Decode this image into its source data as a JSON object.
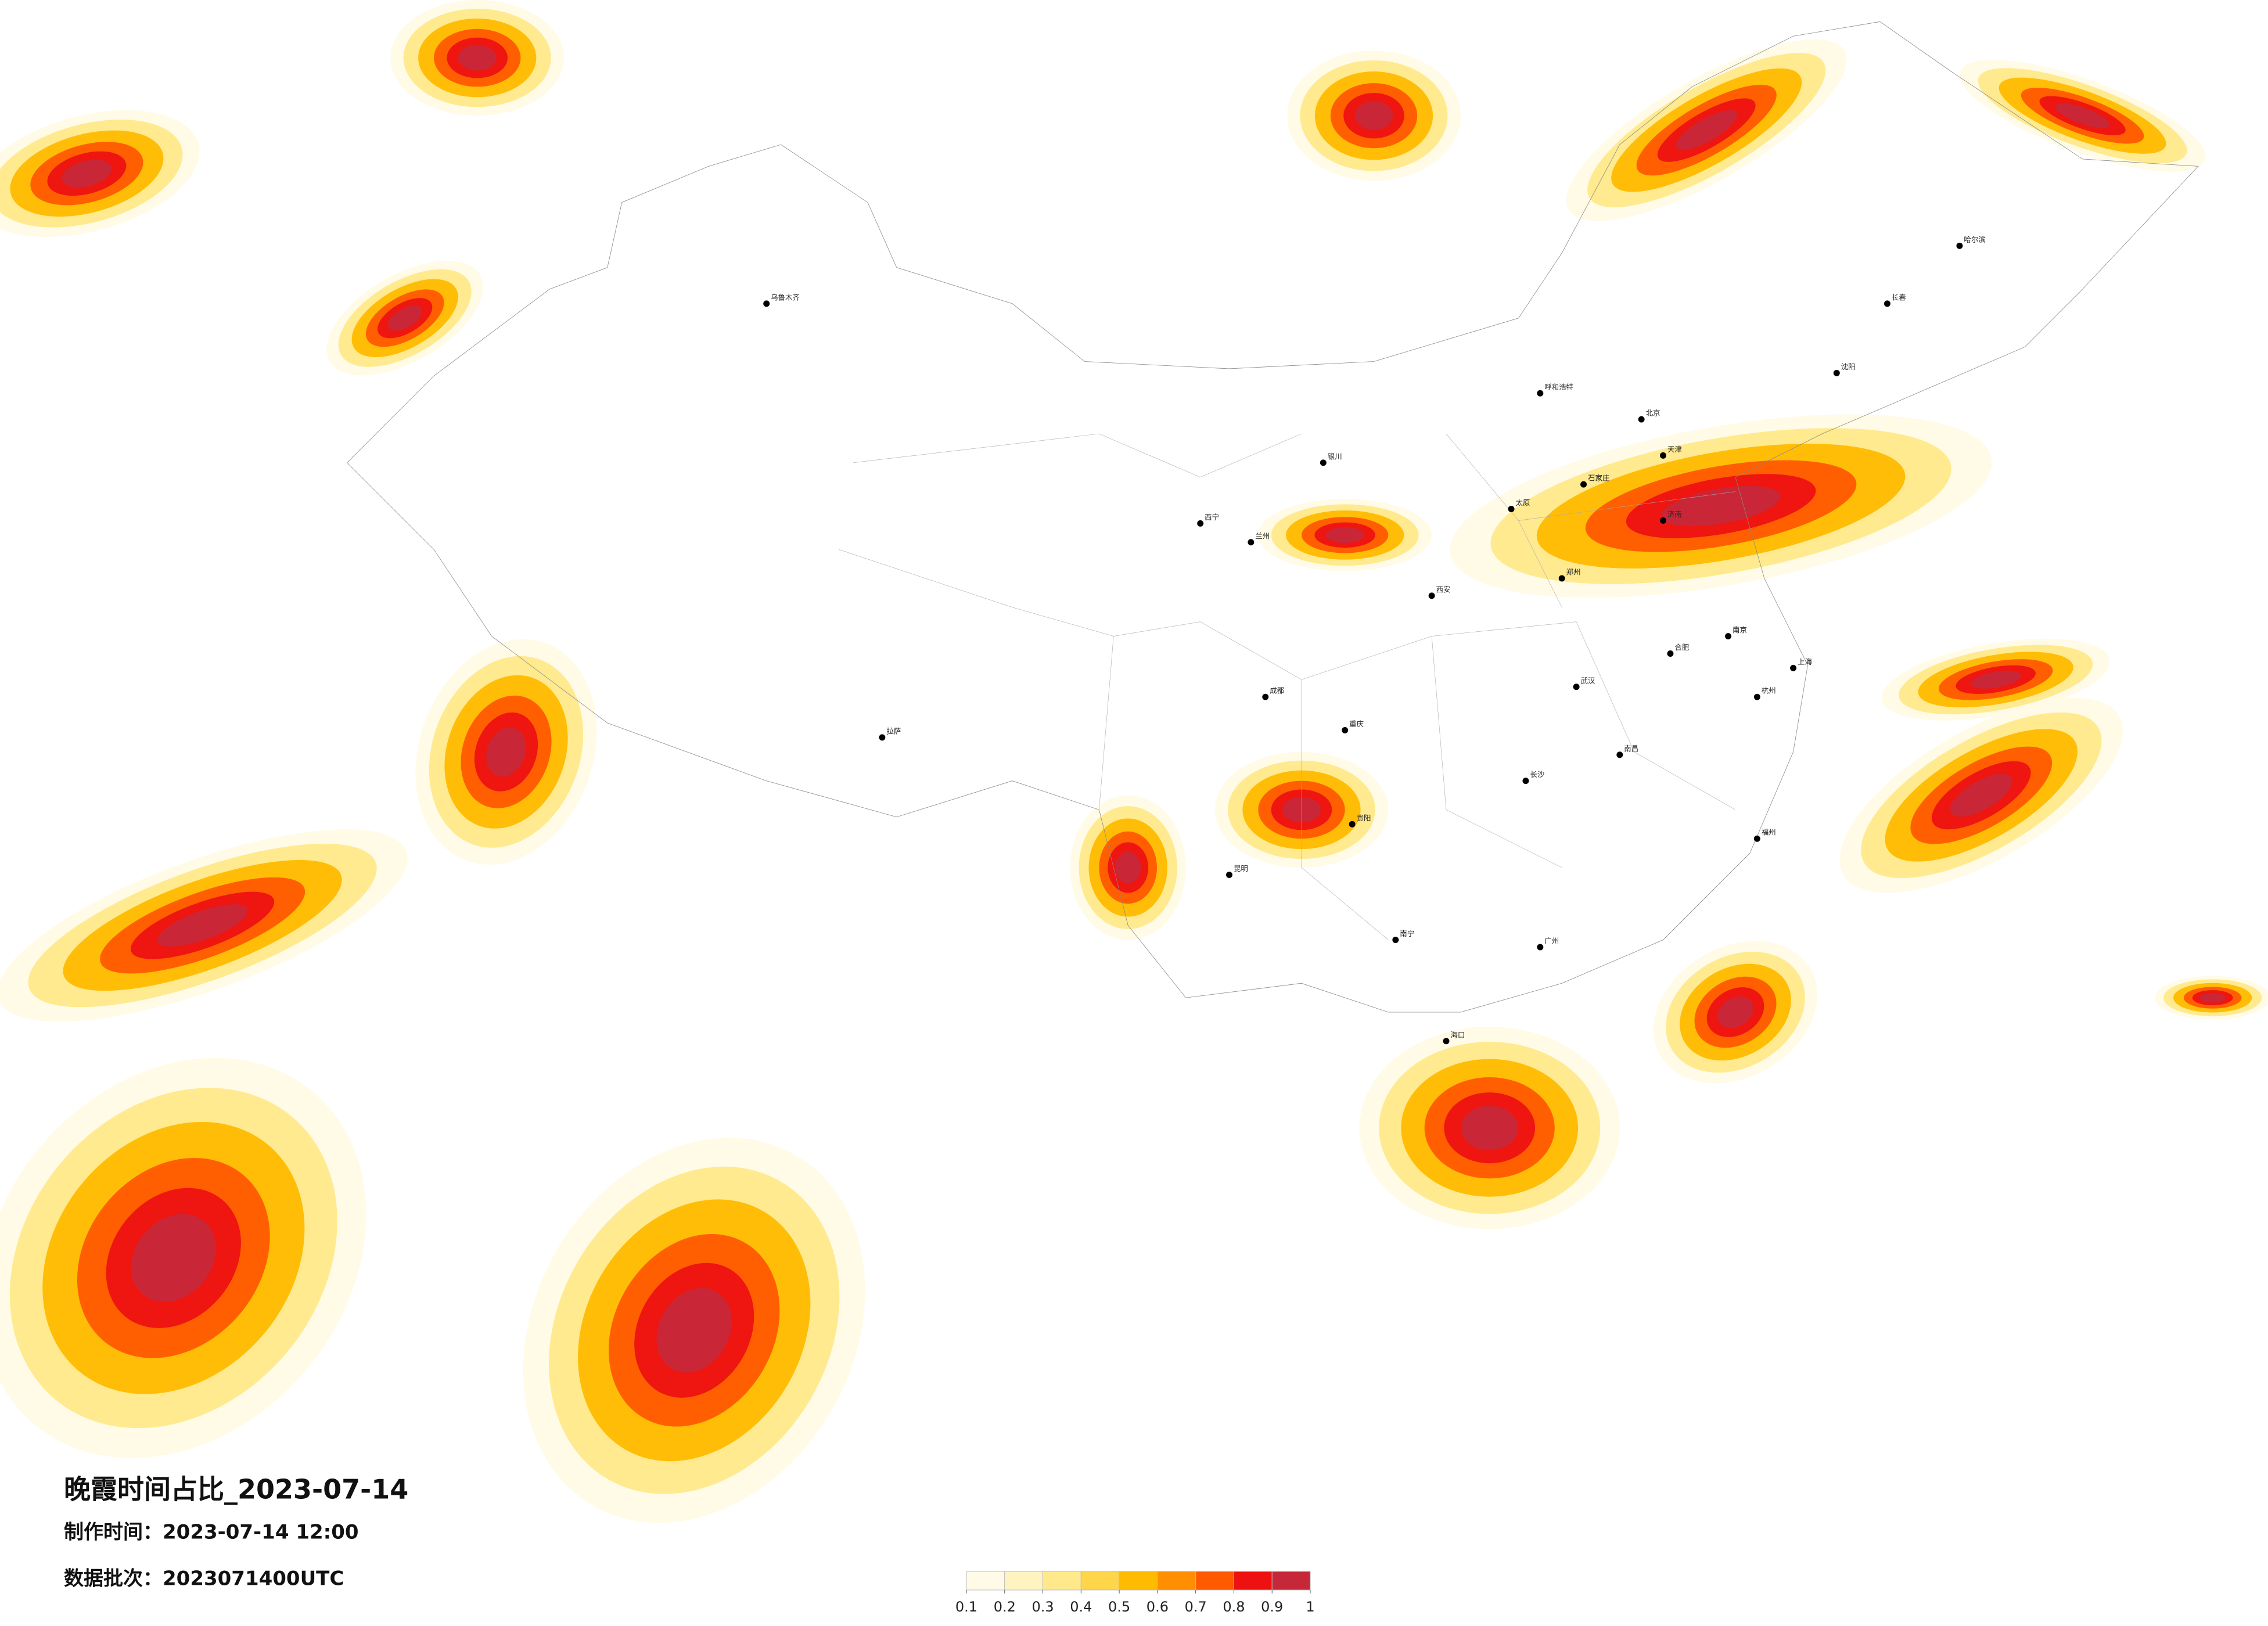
{
  "title": "晚霞时间占比_2023-07-14",
  "made_time": "制作时间：2023-07-14 12:00",
  "data_batch": "数据批次：2023071400UTC",
  "legend": {
    "ticks": [
      0.1,
      0.2,
      0.3,
      0.4,
      0.5,
      0.6,
      0.7,
      0.8,
      0.9,
      1
    ],
    "colors": [
      "#fffbe6",
      "#fff4bf",
      "#ffe98a",
      "#ffd54a",
      "#ffbb00",
      "#ff8f00",
      "#ff5a00",
      "#ee1111",
      "#c6283a"
    ]
  },
  "cities": [
    "北京",
    "天津",
    "石家庄",
    "太原",
    "济南",
    "郑州",
    "西安",
    "兰州",
    "西宁",
    "银川",
    "呼和浩特",
    "沈阳",
    "长春",
    "哈尔滨",
    "乌鲁木齐",
    "拉萨",
    "成都",
    "重庆",
    "贵阳",
    "昆明",
    "南宁",
    "广州",
    "海口",
    "长沙",
    "武汉",
    "南昌",
    "合肥",
    "南京",
    "杭州",
    "上海",
    "福州"
  ]
}
